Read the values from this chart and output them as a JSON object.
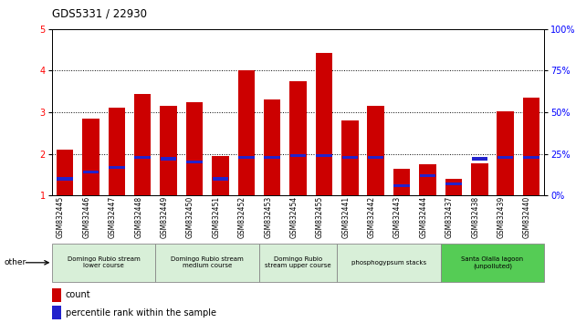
{
  "title": "GDS5331 / 22930",
  "samples": [
    "GSM832445",
    "GSM832446",
    "GSM832447",
    "GSM832448",
    "GSM832449",
    "GSM832450",
    "GSM832451",
    "GSM832452",
    "GSM832453",
    "GSM832454",
    "GSM832455",
    "GSM832441",
    "GSM832442",
    "GSM832443",
    "GSM832444",
    "GSM832437",
    "GSM832438",
    "GSM832439",
    "GSM832440"
  ],
  "count_values": [
    2.1,
    2.85,
    3.1,
    3.45,
    3.15,
    3.25,
    1.95,
    4.02,
    3.3,
    3.75,
    4.42,
    2.8,
    3.15,
    1.65,
    1.75,
    1.4,
    1.78,
    3.02,
    3.35
  ],
  "pct_rank": [
    10,
    14,
    17,
    23,
    22,
    20,
    10,
    23,
    23,
    24,
    24,
    23,
    23,
    6,
    12,
    7,
    22,
    23,
    23
  ],
  "bar_color": "#cc0000",
  "percentile_color": "#2222cc",
  "ylim_left": [
    1,
    5
  ],
  "ylim_right": [
    0,
    100
  ],
  "yticks_left": [
    1,
    2,
    3,
    4,
    5
  ],
  "yticks_right": [
    0,
    25,
    50,
    75,
    100
  ],
  "groups": [
    {
      "label": "Domingo Rubio stream\nlower course",
      "start": 0,
      "end": 4,
      "color": "#cceecc"
    },
    {
      "label": "Domingo Rubio stream\nmedium course",
      "start": 4,
      "end": 8,
      "color": "#cceecc"
    },
    {
      "label": "Domingo Rubio\nstream upper course",
      "start": 8,
      "end": 11,
      "color": "#cceecc"
    },
    {
      "label": "phosphogypsum stacks",
      "start": 11,
      "end": 15,
      "color": "#cceecc"
    },
    {
      "label": "Santa Olalla lagoon\n(unpolluted)",
      "start": 15,
      "end": 19,
      "color": "#44cc44"
    }
  ],
  "legend_count_label": "count",
  "legend_percentile_label": "percentile rank within the sample"
}
